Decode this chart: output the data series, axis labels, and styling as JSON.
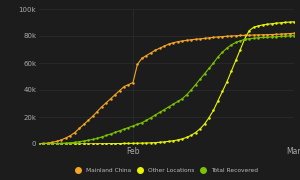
{
  "background_color": "#1c1c1c",
  "plot_bg_color": "#1c1c1c",
  "grid_color": "#2e2e2e",
  "xlabel_feb": "Feb",
  "xlabel_mar": "Mar",
  "ylim": [
    0,
    100000
  ],
  "yticks": [
    0,
    20000,
    40000,
    60000,
    80000,
    100000
  ],
  "ytick_labels": [
    "0",
    "20k",
    "40k",
    "60k",
    "80k",
    "100k"
  ],
  "legend_labels": [
    "Mainland China",
    "Other Locations",
    "Total Recovered"
  ],
  "legend_colors": [
    "#f5a623",
    "#e8f500",
    "#7bc400"
  ],
  "mainland_china_color": "#f5a623",
  "other_locations_color": "#e8f500",
  "total_recovered_color": "#7bc400",
  "mainland_china": [
    200,
    400,
    700,
    1200,
    2000,
    3100,
    4500,
    6200,
    8500,
    11500,
    14500,
    17500,
    20500,
    24000,
    27500,
    30500,
    33500,
    36500,
    39500,
    42500,
    44000,
    45500,
    59000,
    63500,
    65500,
    67500,
    69500,
    71000,
    72500,
    74000,
    75000,
    75800,
    76300,
    76800,
    77200,
    77600,
    77900,
    78200,
    78600,
    79000,
    79300,
    79600,
    79800,
    80000,
    80200,
    80400,
    80500,
    80600,
    80700,
    80800,
    80900,
    81000,
    81100,
    81200,
    81400,
    81600,
    81800,
    82000
  ],
  "other_locations": [
    5,
    8,
    12,
    18,
    25,
    35,
    45,
    58,
    72,
    88,
    108,
    130,
    155,
    185,
    210,
    240,
    270,
    300,
    340,
    390,
    440,
    490,
    550,
    650,
    760,
    880,
    1050,
    1280,
    1580,
    1950,
    2400,
    3000,
    3800,
    4900,
    6400,
    8500,
    11200,
    14800,
    19500,
    25000,
    32000,
    39000,
    46000,
    54000,
    62000,
    70000,
    78000,
    84000,
    86500,
    87500,
    88200,
    88700,
    89100,
    89500,
    89800,
    90100,
    90300,
    90500
  ],
  "total_recovered": [
    30,
    60,
    100,
    160,
    280,
    450,
    650,
    900,
    1200,
    1700,
    2200,
    2800,
    3400,
    4200,
    5200,
    6300,
    7400,
    8600,
    9800,
    11000,
    12200,
    13400,
    14600,
    15800,
    17500,
    19500,
    21500,
    23500,
    25500,
    27500,
    29500,
    31500,
    33500,
    36500,
    40000,
    44000,
    48000,
    52000,
    56000,
    60000,
    64500,
    68000,
    71000,
    73500,
    75200,
    76500,
    77500,
    78000,
    78400,
    78700,
    78900,
    79100,
    79300,
    79500,
    79700,
    79900,
    80100,
    80300
  ],
  "n_points": 58,
  "feb_day": 21,
  "mar_day": 57
}
